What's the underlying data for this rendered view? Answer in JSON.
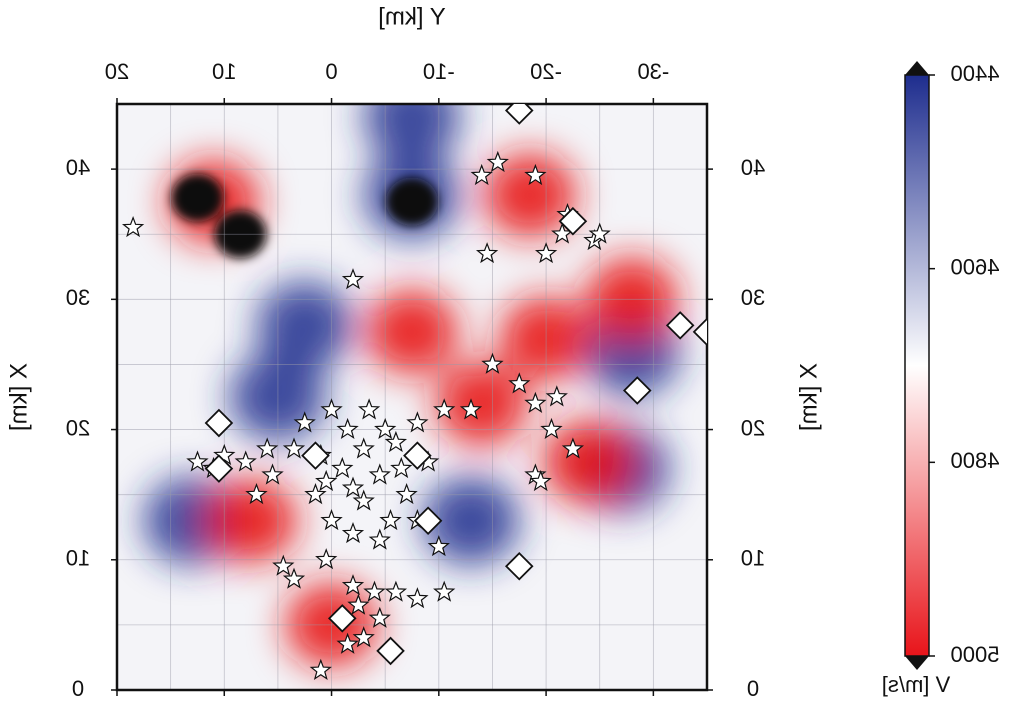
{
  "chart_data": {
    "type": "heatmap",
    "title": "",
    "xlabel": "Y [km]",
    "ylabel": "X [km]",
    "xlim": [
      20,
      -35
    ],
    "ylim": [
      0,
      45
    ],
    "x_ticks": [
      20,
      10,
      0,
      -10,
      -20,
      -30
    ],
    "x_tick_labels": [
      "20",
      "10",
      "0",
      "-10",
      "-20",
      "-30"
    ],
    "y_ticks": [
      0,
      10,
      20,
      30,
      40
    ],
    "y_tick_labels": [
      "0",
      "10",
      "20",
      "30",
      "40"
    ],
    "grid": true,
    "note_rendering": "image is mirror-reversed (all text appears flipped)",
    "colorbar": {
      "label": "V [m/s]",
      "range": [
        4400,
        5000
      ],
      "tick_values": [
        4400,
        4600,
        4800,
        5000
      ],
      "tick_labels": [
        "4400",
        "4600",
        "4800",
        "5000"
      ],
      "placement": "right",
      "colors": {
        "low": "#1e2d8e",
        "mid": "#ffffff",
        "high": "#e8141a",
        "saturated_low": "#111111",
        "saturated_high": "#111111"
      }
    },
    "features": {
      "black_anomalies_low_velocity": [
        {
          "y": 12.5,
          "x": 37.8
        },
        {
          "y": 8.5,
          "x": 35.0
        },
        {
          "y": -7.5,
          "x": 37.5
        }
      ],
      "red_zones": [
        {
          "y": 11,
          "x": 37.5
        },
        {
          "y": -18.5,
          "x": 38.0
        },
        {
          "y": -20,
          "x": 27.0
        },
        {
          "y": -7.5,
          "x": 27.5
        },
        {
          "y": 0,
          "x": 5.0
        },
        {
          "y": -14,
          "x": 22.0
        },
        {
          "y": -28,
          "x": 30.0
        },
        {
          "y": 7.5,
          "x": 13.0
        },
        {
          "y": -24,
          "x": 17.5
        }
      ],
      "blue_zones": [
        {
          "y": -7.5,
          "x": 38.0
        },
        {
          "y": 2.5,
          "x": 28.0
        },
        {
          "y": -7.5,
          "x": 44.0
        },
        {
          "y": 13,
          "x": 13.0
        },
        {
          "y": -13,
          "x": 13.0
        },
        {
          "y": -28,
          "x": 26.0
        },
        {
          "y": -27,
          "x": 17.0
        },
        {
          "y": 5,
          "x": 22.5
        }
      ]
    },
    "earthquakes_stars": [
      [
        18.5,
        35.5
      ],
      [
        -2,
        31.5
      ],
      [
        -14,
        39.5
      ],
      [
        -15.5,
        40.5
      ],
      [
        -19,
        39.5
      ],
      [
        -22,
        36.5
      ],
      [
        -24.5,
        34.5
      ],
      [
        -21.5,
        35
      ],
      [
        -20,
        33.5
      ],
      [
        -14.5,
        33.5
      ],
      [
        -25,
        35
      ],
      [
        -15,
        25
      ],
      [
        -17.5,
        23.5
      ],
      [
        -19,
        22
      ],
      [
        -21,
        22.5
      ],
      [
        -20.5,
        20
      ],
      [
        -22.5,
        18.5
      ],
      [
        -19,
        16.5
      ],
      [
        -13,
        21.5
      ],
      [
        -10.5,
        21.5
      ],
      [
        12.5,
        17.5
      ],
      [
        10,
        18
      ],
      [
        6,
        18.5
      ],
      [
        3.5,
        18.5
      ],
      [
        11,
        17
      ],
      [
        8,
        17.5
      ],
      [
        5.5,
        16.5
      ],
      [
        7,
        15
      ],
      [
        2.5,
        20.5
      ],
      [
        0,
        21.5
      ],
      [
        -1.5,
        20
      ],
      [
        1,
        18
      ],
      [
        -3,
        18.5
      ],
      [
        -5,
        20
      ],
      [
        -3.5,
        21.5
      ],
      [
        -6,
        19
      ],
      [
        -8,
        20.5
      ],
      [
        -9,
        17.5
      ],
      [
        -4.5,
        16.5
      ],
      [
        -7,
        15
      ],
      [
        -2,
        15.5
      ],
      [
        0.5,
        16
      ],
      [
        -5.5,
        13
      ],
      [
        -8,
        13
      ],
      [
        -10,
        11
      ],
      [
        -2,
        12
      ],
      [
        -4.5,
        11.5
      ],
      [
        -1,
        17
      ],
      [
        -3,
        14.5
      ],
      [
        -6.5,
        17
      ],
      [
        1.5,
        15
      ],
      [
        0,
        13
      ],
      [
        4.5,
        9.5
      ],
      [
        3.5,
        8.5
      ],
      [
        0.5,
        10
      ],
      [
        -2,
        8
      ],
      [
        -4,
        7.5
      ],
      [
        -6,
        7.5
      ],
      [
        -8,
        7
      ],
      [
        -10.5,
        7.5
      ],
      [
        -2.5,
        6.5
      ],
      [
        -4.5,
        5.5
      ],
      [
        -3,
        4
      ],
      [
        -1.5,
        3.5
      ],
      [
        1,
        1.5
      ],
      [
        -19.5,
        16
      ]
    ],
    "stations_diamonds": [
      [
        -17.5,
        44.5
      ],
      [
        -22.5,
        36
      ],
      [
        -32.5,
        28
      ],
      [
        -35,
        27.5
      ],
      [
        -28.5,
        23
      ],
      [
        10.5,
        20.5
      ],
      [
        10.5,
        17
      ],
      [
        1.5,
        18
      ],
      [
        -8,
        18
      ],
      [
        -9,
        13
      ],
      [
        -17.5,
        9.5
      ],
      [
        -1,
        5.5
      ],
      [
        -5.5,
        3
      ]
    ]
  }
}
